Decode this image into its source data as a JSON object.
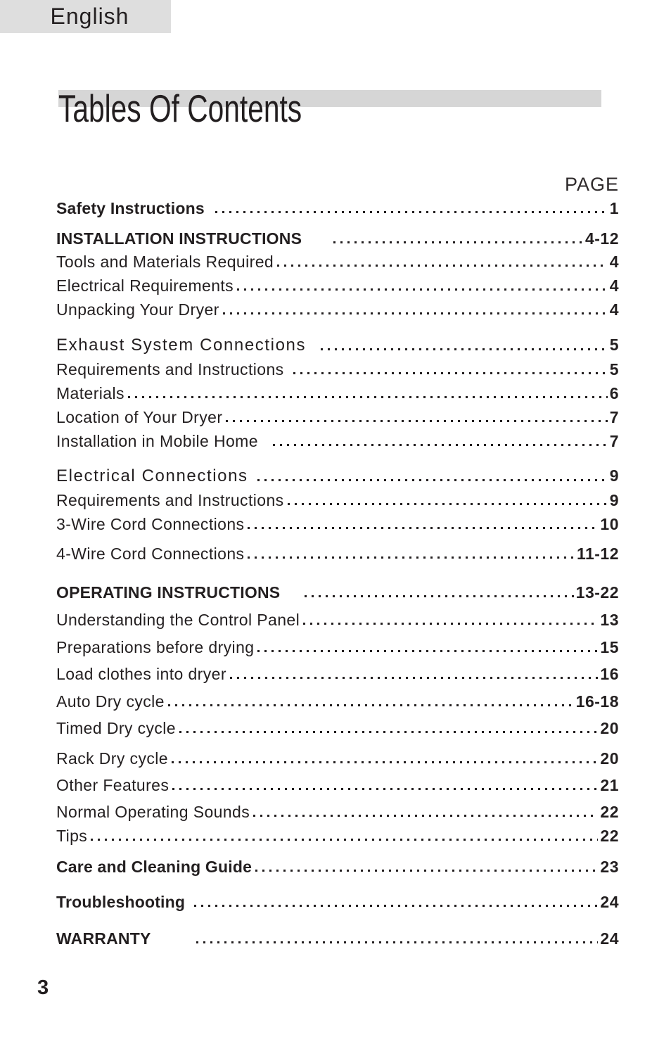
{
  "header": {
    "language": "English",
    "title": "Tables Of Contents"
  },
  "toc": {
    "column_header": "PAGE",
    "entries": [
      {
        "label": "Safety Instructions",
        "page": "1",
        "style": "bold",
        "tab": 10,
        "gap": 0
      },
      {
        "label": "INSTALLATION INSTRUCTIONS",
        "page": "4-12",
        "style": "bold",
        "tab": 40,
        "gap": 17
      },
      {
        "label": "Tools and Materials Required",
        "page": "4",
        "style": "normal",
        "tab": 0,
        "gap": 7
      },
      {
        "label": "Electrical Requirements",
        "page": "4",
        "style": "normal",
        "tab": 0,
        "gap": 8
      },
      {
        "label": "Unpacking Your Dryer",
        "page": "4",
        "style": "normal",
        "tab": 0,
        "gap": 8
      },
      {
        "label": "Exhaust System Connections",
        "page": "5",
        "style": "section",
        "tab": 16,
        "gap": 24
      },
      {
        "label": "Requirements and Instructions",
        "page": "5",
        "style": "normal",
        "tab": 8,
        "gap": 8
      },
      {
        "label": "Materials",
        "page": "6",
        "style": "normal",
        "tab": 0,
        "gap": 8
      },
      {
        "label": "Location of Your Dryer",
        "page": "7",
        "style": "normal",
        "tab": 0,
        "gap": 8
      },
      {
        "label": "Installation in Mobile Home",
        "page": "7",
        "style": "normal",
        "tab": 16,
        "gap": 8
      },
      {
        "label": "Electrical Connections",
        "page": "9",
        "style": "section",
        "tab": 8,
        "gap": 23
      },
      {
        "label": "Requirements and Instructions",
        "page": "9",
        "style": "normal",
        "tab": 0,
        "gap": 8
      },
      {
        "label": "3-Wire Cord Connections",
        "page": "10",
        "style": "normal",
        "tab": 0,
        "gap": 8
      },
      {
        "label": "4-Wire Cord Connections",
        "page": "11-12",
        "style": "normal",
        "tab": 0,
        "gap": 16
      },
      {
        "label": "OPERATING INSTRUCTIONS",
        "page": "13-22",
        "style": "bold",
        "tab": 30,
        "gap": 29
      },
      {
        "label": "Understanding the Control Panel",
        "page": "13",
        "style": "normal",
        "tab": 0,
        "gap": 13
      },
      {
        "label": "Preparations before drying",
        "page": "15",
        "style": "normal",
        "tab": 0,
        "gap": 13
      },
      {
        "label": "Load clothes into dryer",
        "page": "16",
        "style": "normal",
        "tab": 0,
        "gap": 12
      },
      {
        "label": "Auto Dry cycle",
        "page": "16-18",
        "style": "normal",
        "tab": 0,
        "gap": 13
      },
      {
        "label": "Timed Dry cycle",
        "page": "20",
        "style": "normal",
        "tab": 0,
        "gap": 12
      },
      {
        "label": "Rack Dry cycle",
        "page": "20",
        "style": "normal",
        "tab": 0,
        "gap": 17
      },
      {
        "label": "Other Features",
        "page": "21",
        "style": "normal",
        "tab": 0,
        "gap": 12
      },
      {
        "label": "Normal Operating Sounds",
        "page": "22",
        "style": "normal",
        "tab": 0,
        "gap": 12
      },
      {
        "label": "Tips",
        "page": "22",
        "style": "normal",
        "tab": 0,
        "gap": 8
      },
      {
        "label": "Care and Cleaning Guide",
        "page": "23",
        "style": "bold",
        "tab": 0,
        "gap": 18
      },
      {
        "label": "Troubleshooting",
        "page": "24",
        "style": "bold",
        "tab": 8,
        "gap": 24
      },
      {
        "label": "WARRANTY",
        "page": "24",
        "style": "bold",
        "tab": 60,
        "gap": 26
      }
    ]
  },
  "footer": {
    "page_number": "3"
  }
}
